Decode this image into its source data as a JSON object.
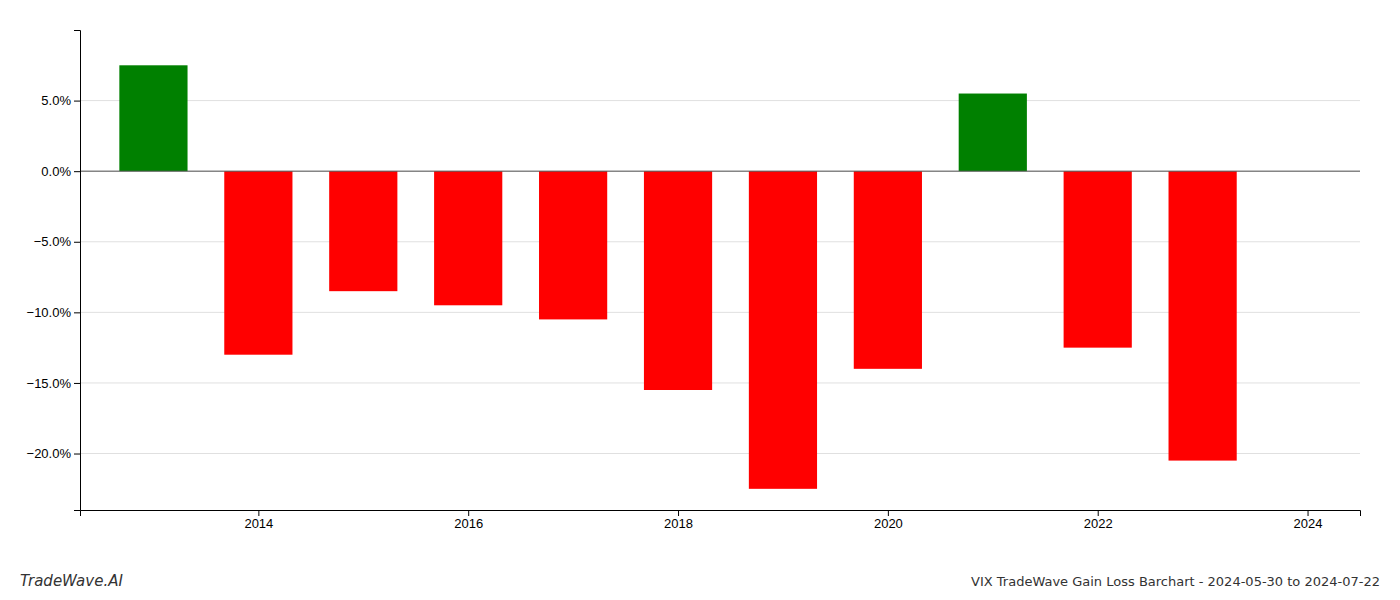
{
  "chart_data": {
    "type": "bar",
    "title": "VIX TradeWave Gain Loss Barchart - 2024-05-30 to 2024-07-22",
    "annotations": [
      "TradeWave.AI"
    ],
    "x": [
      2013,
      2014,
      2015,
      2016,
      2017,
      2018,
      2019,
      2020,
      2021,
      2022,
      2023
    ],
    "values": [
      7.5,
      -13.0,
      -8.5,
      -9.5,
      -10.5,
      -15.5,
      -22.5,
      -14.0,
      5.5,
      -12.5,
      -20.5
    ],
    "colors": [
      "#008000",
      "#ff0000",
      "#ff0000",
      "#ff0000",
      "#ff0000",
      "#ff0000",
      "#ff0000",
      "#ff0000",
      "#008000",
      "#ff0000",
      "#ff0000"
    ],
    "xlim": [
      2012.3,
      2024.5
    ],
    "xticks": [
      2014,
      2016,
      2018,
      2020,
      2022,
      2024
    ],
    "ylim": [
      -24,
      10
    ],
    "yticks": [
      {
        "value": 5.0,
        "label": "5.0%"
      },
      {
        "value": 0.0,
        "label": "0.0%"
      },
      {
        "value": -5.0,
        "label": "−5.0%"
      },
      {
        "value": -10.0,
        "label": "−10.0%"
      },
      {
        "value": -15.0,
        "label": "−15.0%"
      },
      {
        "value": -20.0,
        "label": "−20.0%"
      }
    ],
    "grid": true
  }
}
